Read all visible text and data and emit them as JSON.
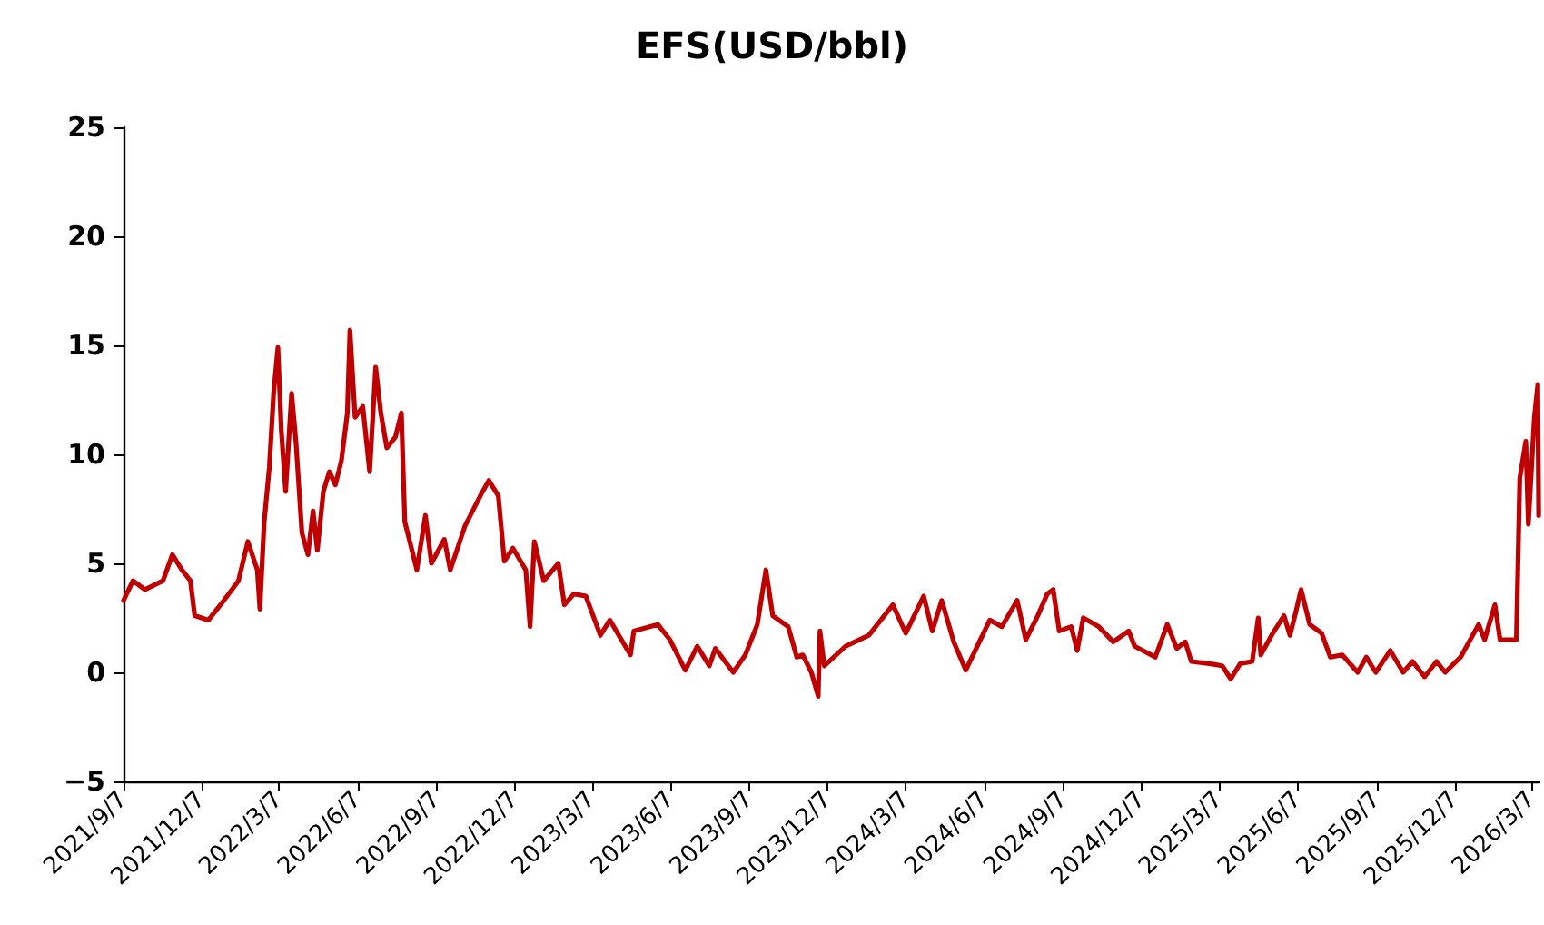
{
  "chart_data": {
    "type": "line",
    "title": "EFS(USD/bbl)",
    "xlim": [
      "2021-09-07",
      "2026-03-16"
    ],
    "xticks": [
      {
        "value": "2021-09-07",
        "label": "2021/9/7"
      },
      {
        "value": "2021-12-07",
        "label": "2021/12/7"
      },
      {
        "value": "2022-03-07",
        "label": "2022/3/7"
      },
      {
        "value": "2022-06-07",
        "label": "2022/6/7"
      },
      {
        "value": "2022-09-07",
        "label": "2022/9/7"
      },
      {
        "value": "2022-12-07",
        "label": "2022/12/7"
      },
      {
        "value": "2023-03-07",
        "label": "2023/3/7"
      },
      {
        "value": "2023-06-07",
        "label": "2023/6/7"
      },
      {
        "value": "2023-09-07",
        "label": "2023/9/7"
      },
      {
        "value": "2023-12-07",
        "label": "2023/12/7"
      },
      {
        "value": "2024-03-07",
        "label": "2024/3/7"
      },
      {
        "value": "2024-06-07",
        "label": "2024/6/7"
      },
      {
        "value": "2024-09-07",
        "label": "2024/9/7"
      },
      {
        "value": "2024-12-07",
        "label": "2024/12/7"
      },
      {
        "value": "2025-03-07",
        "label": "2025/3/7"
      },
      {
        "value": "2025-06-07",
        "label": "2025/6/7"
      },
      {
        "value": "2025-09-07",
        "label": "2025/9/7"
      },
      {
        "value": "2025-12-07",
        "label": "2025/12/7"
      },
      {
        "value": "2026-03-07",
        "label": "2026/3/7"
      }
    ],
    "ylim": [
      -5,
      25
    ],
    "yticks": [
      -5,
      0,
      5,
      10,
      15,
      20,
      25
    ],
    "marker": "none",
    "line_style": "solid",
    "series": [
      {
        "color": "#c00000",
        "x": [
          "2021-09-07",
          "2021-09-18",
          "2021-10-02",
          "2021-10-23",
          "2021-11-03",
          "2021-11-14",
          "2021-11-24",
          "2021-11-29",
          "2021-12-15",
          "2022-01-02",
          "2022-01-19",
          "2022-01-30",
          "2022-02-10",
          "2022-02-13",
          "2022-02-18",
          "2022-02-24",
          "2022-03-01",
          "2022-03-06",
          "2022-03-10",
          "2022-03-15",
          "2022-03-22",
          "2022-03-27",
          "2022-04-03",
          "2022-04-10",
          "2022-04-16",
          "2022-04-21",
          "2022-04-28",
          "2022-05-05",
          "2022-05-12",
          "2022-05-19",
          "2022-05-26",
          "2022-05-29",
          "2022-06-04",
          "2022-06-13",
          "2022-06-21",
          "2022-06-28",
          "2022-07-04",
          "2022-07-11",
          "2022-07-21",
          "2022-07-28",
          "2022-08-01",
          "2022-08-15",
          "2022-08-25",
          "2022-09-01",
          "2022-09-16",
          "2022-09-23",
          "2022-10-10",
          "2022-10-28",
          "2022-11-07",
          "2022-11-18",
          "2022-11-25",
          "2022-12-05",
          "2022-12-20",
          "2022-12-25",
          "2022-12-30",
          "2023-01-10",
          "2023-01-27",
          "2023-02-03",
          "2023-02-14",
          "2023-02-28",
          "2023-03-17",
          "2023-03-28",
          "2023-04-21",
          "2023-04-25",
          "2023-05-23",
          "2023-06-06",
          "2023-06-24",
          "2023-07-08",
          "2023-07-22",
          "2023-07-29",
          "2023-08-19",
          "2023-09-02",
          "2023-09-16",
          "2023-09-26",
          "2023-10-04",
          "2023-10-22",
          "2023-11-01",
          "2023-11-08",
          "2023-11-18",
          "2023-11-26",
          "2023-11-28",
          "2023-12-03",
          "2023-12-28",
          "2024-01-24",
          "2024-02-07",
          "2024-02-21",
          "2024-03-07",
          "2024-03-28",
          "2024-04-07",
          "2024-04-18",
          "2024-05-02",
          "2024-05-16",
          "2024-05-27",
          "2024-06-13",
          "2024-06-27",
          "2024-07-15",
          "2024-07-25",
          "2024-08-08",
          "2024-08-19",
          "2024-08-26",
          "2024-09-02",
          "2024-09-16",
          "2024-09-23",
          "2024-09-30",
          "2024-10-18",
          "2024-11-04",
          "2024-11-22",
          "2024-11-29",
          "2024-12-23",
          "2025-01-06",
          "2025-01-17",
          "2025-01-27",
          "2025-02-03",
          "2025-02-24",
          "2025-03-11",
          "2025-03-21",
          "2025-04-01",
          "2025-04-15",
          "2025-04-22",
          "2025-04-25",
          "2025-05-09",
          "2025-05-22",
          "2025-05-29",
          "2025-06-05",
          "2025-06-11",
          "2025-06-21",
          "2025-07-05",
          "2025-07-15",
          "2025-07-29",
          "2025-08-16",
          "2025-08-26",
          "2025-09-06",
          "2025-09-23",
          "2025-10-08",
          "2025-10-19",
          "2025-11-02",
          "2025-11-16",
          "2025-11-26",
          "2025-12-14",
          "2026-01-04",
          "2026-01-11",
          "2026-01-23",
          "2026-01-29",
          "2026-02-17",
          "2026-02-21",
          "2026-02-28",
          "2026-03-03",
          "2026-03-10",
          "2026-03-14",
          "2026-03-15"
        ],
        "values": [
          3.3,
          4.2,
          3.8,
          4.2,
          5.4,
          4.7,
          4.2,
          2.6,
          2.4,
          3.3,
          4.2,
          6.0,
          4.7,
          2.9,
          6.9,
          9.4,
          12.8,
          14.9,
          11.1,
          8.3,
          12.8,
          10.6,
          6.4,
          5.4,
          7.4,
          5.6,
          8.3,
          9.2,
          8.6,
          9.7,
          11.9,
          15.7,
          11.7,
          12.2,
          9.2,
          14.0,
          11.9,
          10.3,
          10.8,
          11.9,
          6.9,
          4.7,
          7.2,
          5.0,
          6.1,
          4.7,
          6.7,
          8.1,
          8.8,
          8.1,
          5.1,
          5.7,
          4.7,
          2.1,
          6.0,
          4.2,
          5.0,
          3.1,
          3.6,
          3.5,
          1.7,
          2.4,
          0.8,
          1.9,
          2.2,
          1.5,
          0.1,
          1.2,
          0.3,
          1.1,
          0,
          0.8,
          2.2,
          4.7,
          2.6,
          2.1,
          0.7,
          0.8,
          0,
          -1.1,
          1.9,
          0.3,
          1.2,
          1.7,
          2.4,
          3.1,
          1.8,
          3.5,
          1.9,
          3.3,
          1.4,
          0.1,
          1.0,
          2.4,
          2.1,
          3.3,
          1.5,
          2.6,
          3.6,
          3.8,
          1.9,
          2.1,
          1.0,
          2.5,
          2.1,
          1.4,
          1.9,
          1.2,
          0.7,
          2.2,
          1.1,
          1.4,
          0.5,
          0.4,
          0.3,
          -0.3,
          0.4,
          0.5,
          2.5,
          0.8,
          1.8,
          2.6,
          1.7,
          2.8,
          3.8,
          2.2,
          1.8,
          0.7,
          0.8,
          0,
          0.7,
          0,
          1.0,
          0,
          0.5,
          -0.2,
          0.5,
          0,
          0.7,
          2.2,
          1.5,
          3.1,
          1.5,
          1.5,
          8.9,
          10.6,
          6.8,
          11.7,
          13.2,
          7.2
        ]
      }
    ]
  }
}
